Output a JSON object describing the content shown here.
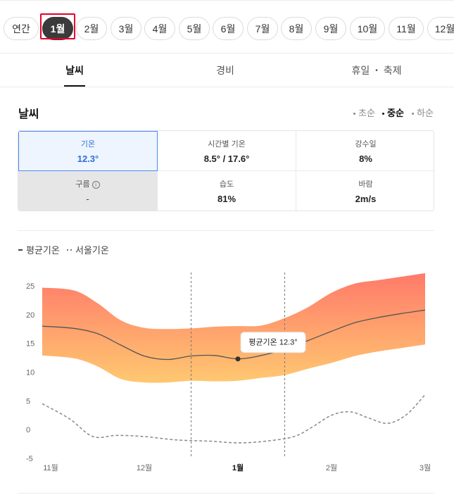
{
  "months": {
    "items": [
      "연간",
      "1월",
      "2월",
      "3월",
      "4월",
      "5월",
      "6월",
      "7월",
      "8월",
      "9월",
      "10월",
      "11월",
      "12월"
    ],
    "selected": "1월"
  },
  "tabs": {
    "weather": "날씨",
    "cost": "경비",
    "holiday": "휴일",
    "festival": "축제"
  },
  "weather": {
    "title": "날씨",
    "seasons": [
      "초순",
      "중순",
      "하순"
    ],
    "active_season": "중순",
    "stats": {
      "temp_label": "기온",
      "temp_value": "12.3°",
      "hourly_label": "시간별 기온",
      "hourly_value": "8.5° / 17.6°",
      "rain_label": "강수일",
      "rain_value": "8%",
      "cloud_label": "구름",
      "cloud_value": "-",
      "humidity_label": "습도",
      "humidity_value": "81%",
      "wind_label": "바람",
      "wind_value": "2m/s"
    }
  },
  "legend": {
    "avg": "평균기온",
    "seoul": "서울기온"
  },
  "tooltip": "평균기온 12.3°",
  "colors": {
    "accent": "#4a8cf0",
    "active_chip": "#3b3b3b",
    "highlight": "#e4002b",
    "band_top": "#ff7a6a",
    "band_bottom": "#ffc870"
  },
  "chart_data": {
    "type": "area",
    "x_labels": [
      "11월",
      "12월",
      "1월",
      "2월",
      "3월"
    ],
    "x_label_positions": [
      0,
      1,
      2,
      3,
      4
    ],
    "highlight_label": "1월",
    "yticks": [
      25,
      20,
      15,
      10,
      5,
      0,
      -5
    ],
    "ylim": [
      -5,
      26
    ],
    "xlim": [
      0,
      4
    ],
    "highlight_range": [
      1.5,
      2.5
    ],
    "grid": false,
    "series": [
      {
        "name": "평균기온",
        "x": [
          0,
          0.25,
          0.5,
          0.75,
          1,
          1.25,
          1.5,
          1.75,
          2,
          2.25,
          2.5,
          2.75,
          3,
          3.25,
          3.5,
          3.75,
          4
        ],
        "values": [
          18.0,
          17.6,
          16.7,
          14.7,
          12.8,
          12.2,
          12.8,
          12.9,
          12.3,
          12.9,
          14.0,
          15.5,
          17.1,
          18.6,
          19.5,
          20.2,
          20.8
        ],
        "upper": [
          24.7,
          24.2,
          22.0,
          19.0,
          17.7,
          17.5,
          17.6,
          17.9,
          18.0,
          18.1,
          19.4,
          21.3,
          23.8,
          25.4,
          26.0,
          26.6,
          27.2
        ],
        "lower": [
          12.9,
          12.4,
          11.0,
          8.8,
          8.2,
          8.2,
          8.5,
          8.4,
          8.5,
          9.0,
          9.5,
          10.6,
          11.6,
          12.8,
          13.6,
          14.2,
          14.8
        ]
      },
      {
        "name": "서울기온",
        "x": [
          0,
          0.2,
          0.45,
          0.7,
          1,
          1.35,
          1.7,
          2,
          2.3,
          2.6,
          2.8,
          3,
          3.2,
          3.4,
          3.6,
          3.8,
          4
        ],
        "values": [
          4.5,
          1.9,
          -1.2,
          -1.0,
          -1.2,
          -1.8,
          -2.0,
          -2.3,
          -2.0,
          -1.2,
          0.5,
          2.5,
          3.1,
          2.0,
          1.1,
          2.6,
          6.1
        ]
      }
    ],
    "tooltip_point": {
      "x": 2,
      "y": 12.3
    }
  }
}
